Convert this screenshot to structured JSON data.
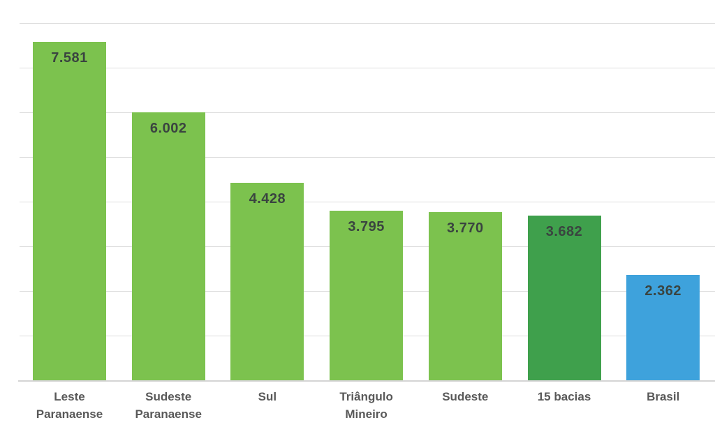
{
  "chart_data": {
    "type": "bar",
    "title": "",
    "xlabel": "",
    "ylabel": "",
    "categories": [
      "Leste Paranaense",
      "Sudeste Paranaense",
      "Sul",
      "Triângulo Mineiro",
      "Sudeste",
      "15 bacias",
      "Brasil"
    ],
    "values": [
      7581,
      6002,
      4428,
      3795,
      3770,
      3682,
      2362
    ],
    "value_labels": [
      "7.581",
      "6.002",
      "4.428",
      "3.795",
      "3.770",
      "3.682",
      "2.362"
    ],
    "bar_colors": [
      "#7cc24e",
      "#7cc24e",
      "#7cc24e",
      "#7cc24e",
      "#7cc24e",
      "#3fa04c",
      "#3ea2dc"
    ],
    "ylim": [
      0,
      8000
    ],
    "gridline_step": 1000,
    "grid": true,
    "legend": "none",
    "y_tick_labels_visible": false
  },
  "style": {
    "background": "#ffffff",
    "gridline_color": "#dcdcdc",
    "axis_line_color": "#d4d4d4",
    "value_label_color": "#3a4440",
    "category_label_color": "#595959",
    "light_green": "#7cc24e",
    "dark_green": "#3fa04c",
    "blue": "#3ea2dc"
  }
}
